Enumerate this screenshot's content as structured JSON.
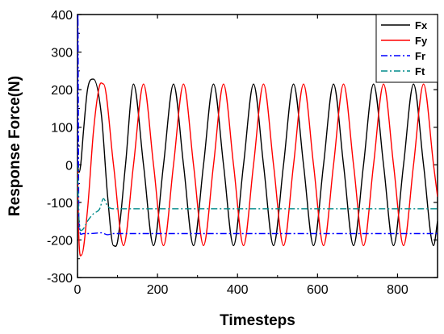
{
  "chart_data": {
    "type": "line",
    "title": "",
    "xlabel": "Timesteps",
    "ylabel": "Response Force(N)",
    "xlim": [
      0,
      900
    ],
    "ylim": [
      -300,
      400
    ],
    "xticks": [
      0,
      200,
      400,
      600,
      800
    ],
    "yticks": [
      -300,
      -200,
      -100,
      0,
      100,
      200,
      300,
      400
    ],
    "grid": false,
    "legend_position": "top-right",
    "series": [
      {
        "name": "Fx",
        "color": "#000000",
        "dash": "solid",
        "description": "sinusoid, amplitude ~215 N, period ~100 timesteps, first peak ~228 N near t=40",
        "x": [
          0,
          4,
          8,
          15,
          25,
          40,
          60,
          75,
          90,
          100,
          120,
          140,
          165,
          190,
          215,
          240,
          265,
          290,
          315,
          340,
          365,
          390,
          415,
          440,
          465,
          490,
          515,
          540,
          565,
          590,
          615,
          640,
          665,
          690,
          715,
          740,
          765,
          790,
          815,
          840,
          865,
          890,
          900
        ],
        "y": [
          0,
          -20,
          0,
          90,
          200,
          228,
          130,
          -80,
          -215,
          -205,
          0,
          215,
          0,
          -215,
          0,
          215,
          0,
          -215,
          0,
          215,
          0,
          -215,
          0,
          215,
          0,
          -215,
          0,
          215,
          0,
          -215,
          0,
          215,
          0,
          -215,
          0,
          215,
          0,
          -215,
          0,
          215,
          0,
          -215,
          -150
        ]
      },
      {
        "name": "Fy",
        "color": "#ff0000",
        "dash": "solid",
        "description": "sinusoid lagging Fx by ~25 timesteps, amplitude ~215 N, first trough ~-240 N near t=10",
        "x": [
          0,
          3,
          10,
          25,
          40,
          55,
          65,
          90,
          115,
          140,
          165,
          190,
          215,
          240,
          265,
          290,
          315,
          340,
          365,
          390,
          415,
          440,
          465,
          490,
          515,
          540,
          565,
          590,
          615,
          640,
          665,
          690,
          715,
          740,
          765,
          790,
          815,
          840,
          865,
          890,
          900
        ],
        "y": [
          0,
          -180,
          -240,
          -120,
          90,
          210,
          215,
          0,
          -215,
          0,
          215,
          0,
          -215,
          0,
          215,
          0,
          -215,
          0,
          215,
          0,
          -215,
          0,
          215,
          0,
          -215,
          0,
          215,
          0,
          -215,
          0,
          215,
          0,
          -215,
          0,
          215,
          0,
          -215,
          0,
          215,
          0,
          -85
        ]
      },
      {
        "name": "Fr",
        "color": "#0000ff",
        "dash": "dashdot",
        "description": "initial spike to ~400 then settles at ~-183 N",
        "x": [
          0,
          1,
          2,
          3,
          5,
          8,
          15,
          30,
          60,
          75,
          90,
          110,
          150,
          300,
          600,
          900
        ],
        "y": [
          0,
          400,
          200,
          -100,
          -160,
          -185,
          -183,
          -183,
          -181,
          -186,
          -183,
          -183,
          -183,
          -183,
          -183,
          -183
        ],
        "mean": -183
      },
      {
        "name": "Ft",
        "color": "#008b8b",
        "dash": "dashdot",
        "description": "initial dip to ~-170 then settles at ~-117 N",
        "x": [
          0,
          2,
          4,
          8,
          15,
          25,
          40,
          55,
          65,
          75,
          90,
          110,
          150,
          300,
          600,
          900
        ],
        "y": [
          0,
          -100,
          -150,
          -175,
          -170,
          -150,
          -130,
          -118,
          -90,
          -110,
          -117,
          -117,
          -117,
          -117,
          -117,
          -117
        ],
        "mean": -117
      }
    ]
  }
}
